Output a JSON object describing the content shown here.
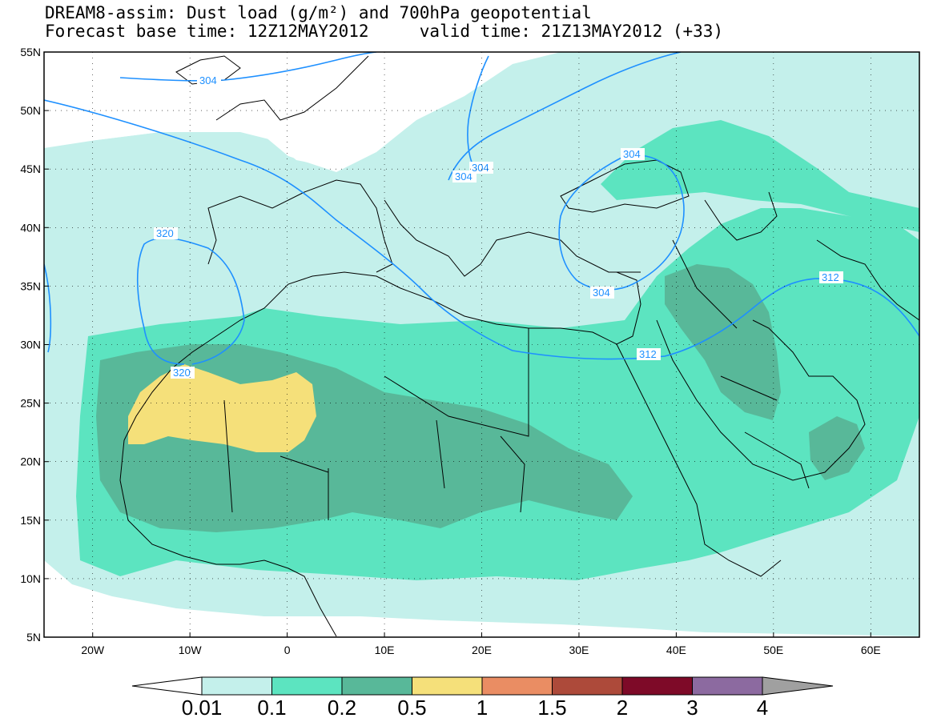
{
  "title_line1": "DREAM8-assim: Dust load (g/m²) and 700hPa geopotential",
  "title_line2": "Forecast base time: 12Z12MAY2012     valid time: 21Z13MAY2012 (+33)",
  "map_extent": {
    "lon_min": -25,
    "lon_max": 65,
    "lat_min": 5,
    "lat_max": 55
  },
  "lat_labels": [
    "5N",
    "10N",
    "15N",
    "20N",
    "25N",
    "30N",
    "35N",
    "40N",
    "45N",
    "50N",
    "55N"
  ],
  "lat_values": [
    5,
    10,
    15,
    20,
    25,
    30,
    35,
    40,
    45,
    50,
    55
  ],
  "lon_labels": [
    "20W",
    "10W",
    "0",
    "10E",
    "20E",
    "30E",
    "40E",
    "50E",
    "60E"
  ],
  "lon_values": [
    -20,
    -10,
    0,
    10,
    20,
    30,
    40,
    50,
    60
  ],
  "dust_levels": {
    "boundaries": [
      "0.01",
      "0.1",
      "0.2",
      "0.5",
      "1",
      "1.5",
      "2",
      "3",
      "4"
    ],
    "colors": [
      "#c4f0eb",
      "#5ce4c0",
      "#58b899",
      "#f5e07a",
      "#ea8d63",
      "#ad4a3a",
      "#7e0a28",
      "#8c6aa0"
    ],
    "under_color": "#ffffff",
    "over_color": "#a0a0a0"
  },
  "geopotential_contours": [
    {
      "label": "304",
      "color": "#1e90ff"
    },
    {
      "label": "312",
      "color": "#1e90ff"
    },
    {
      "label": "320",
      "color": "#1e90ff"
    }
  ]
}
